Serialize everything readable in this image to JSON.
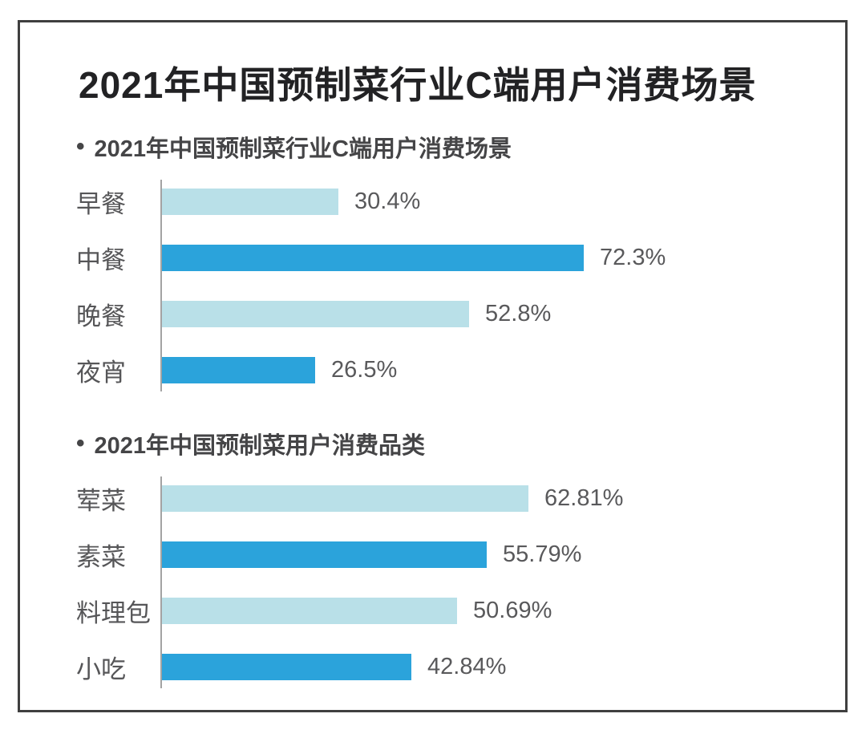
{
  "page_title": "2021年中国预制菜行业C端用户消费场景",
  "colors": {
    "bar_light_blue": "#b9e0e8",
    "bar_dark_blue": "#2ba3db",
    "frame_border": "#3f3f3f",
    "axis_line": "#a3a3a3",
    "title_text": "#222224",
    "label_text": "#565658"
  },
  "chart_data": [
    {
      "type": "bar",
      "orientation": "horizontal",
      "bullet": "•",
      "title": "2021年中国预制菜行业C端用户消费场景",
      "categories": [
        "早餐",
        "中餐",
        "晚餐",
        "夜宵"
      ],
      "values": [
        30.4,
        72.3,
        52.8,
        26.5
      ],
      "value_labels": [
        "30.4%",
        "72.3%",
        "52.8%",
        "26.5%"
      ],
      "bar_colors": [
        "#b9e0e8",
        "#2ba3db",
        "#b9e0e8",
        "#2ba3db"
      ],
      "xlim": [
        0,
        100
      ],
      "grid": false,
      "legend": false
    },
    {
      "type": "bar",
      "orientation": "horizontal",
      "bullet": "•",
      "title": "2021年中国预制菜用户消费品类",
      "categories": [
        "荤菜",
        "素菜",
        "料理包",
        "小吃"
      ],
      "values": [
        62.81,
        55.79,
        50.69,
        42.84
      ],
      "value_labels": [
        "62.81%",
        "55.79%",
        "50.69%",
        "42.84%"
      ],
      "bar_colors": [
        "#b9e0e8",
        "#2ba3db",
        "#b9e0e8",
        "#2ba3db"
      ],
      "xlim": [
        0,
        100
      ],
      "grid": false,
      "legend": false
    }
  ]
}
